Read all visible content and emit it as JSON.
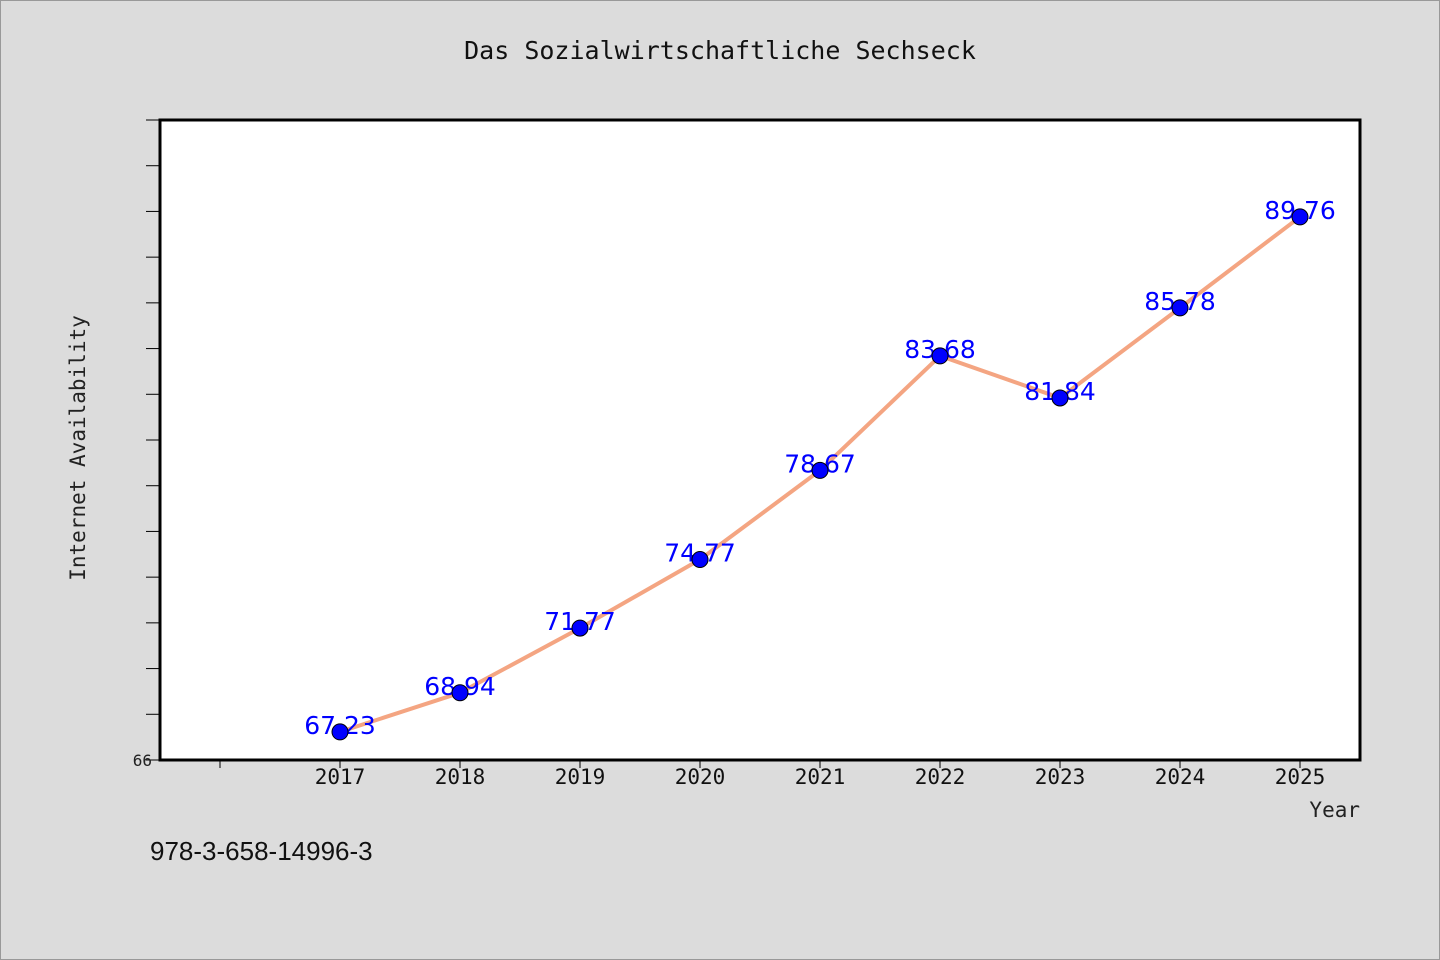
{
  "figure": {
    "background": "#dcdcdc",
    "caption": "978-3-658-14996-3"
  },
  "chart_data": {
    "type": "line",
    "title": "Das Sozialwirtschaftliche Sechseck",
    "xlabel": "Year",
    "ylabel": "Internet Availability",
    "categories": [
      "2017",
      "2018",
      "2019",
      "2020",
      "2021",
      "2022",
      "2023",
      "2024",
      "2025"
    ],
    "series": [
      {
        "values": [
          67.23,
          68.94,
          71.77,
          74.77,
          78.67,
          83.68,
          81.84,
          85.78,
          89.76
        ],
        "labels": [
          "67.23",
          "68.94",
          "71.77",
          "74.77",
          "78.67",
          "83.68",
          "81.84",
          "85.78",
          "89.76"
        ],
        "line_color": "#f4a582",
        "marker_color": "#0000ff",
        "label_color": "#0000ff"
      }
    ],
    "ylim": [
      66,
      94
    ],
    "y_tick_labels": [
      "66"
    ],
    "grid": false,
    "legend": "none"
  }
}
